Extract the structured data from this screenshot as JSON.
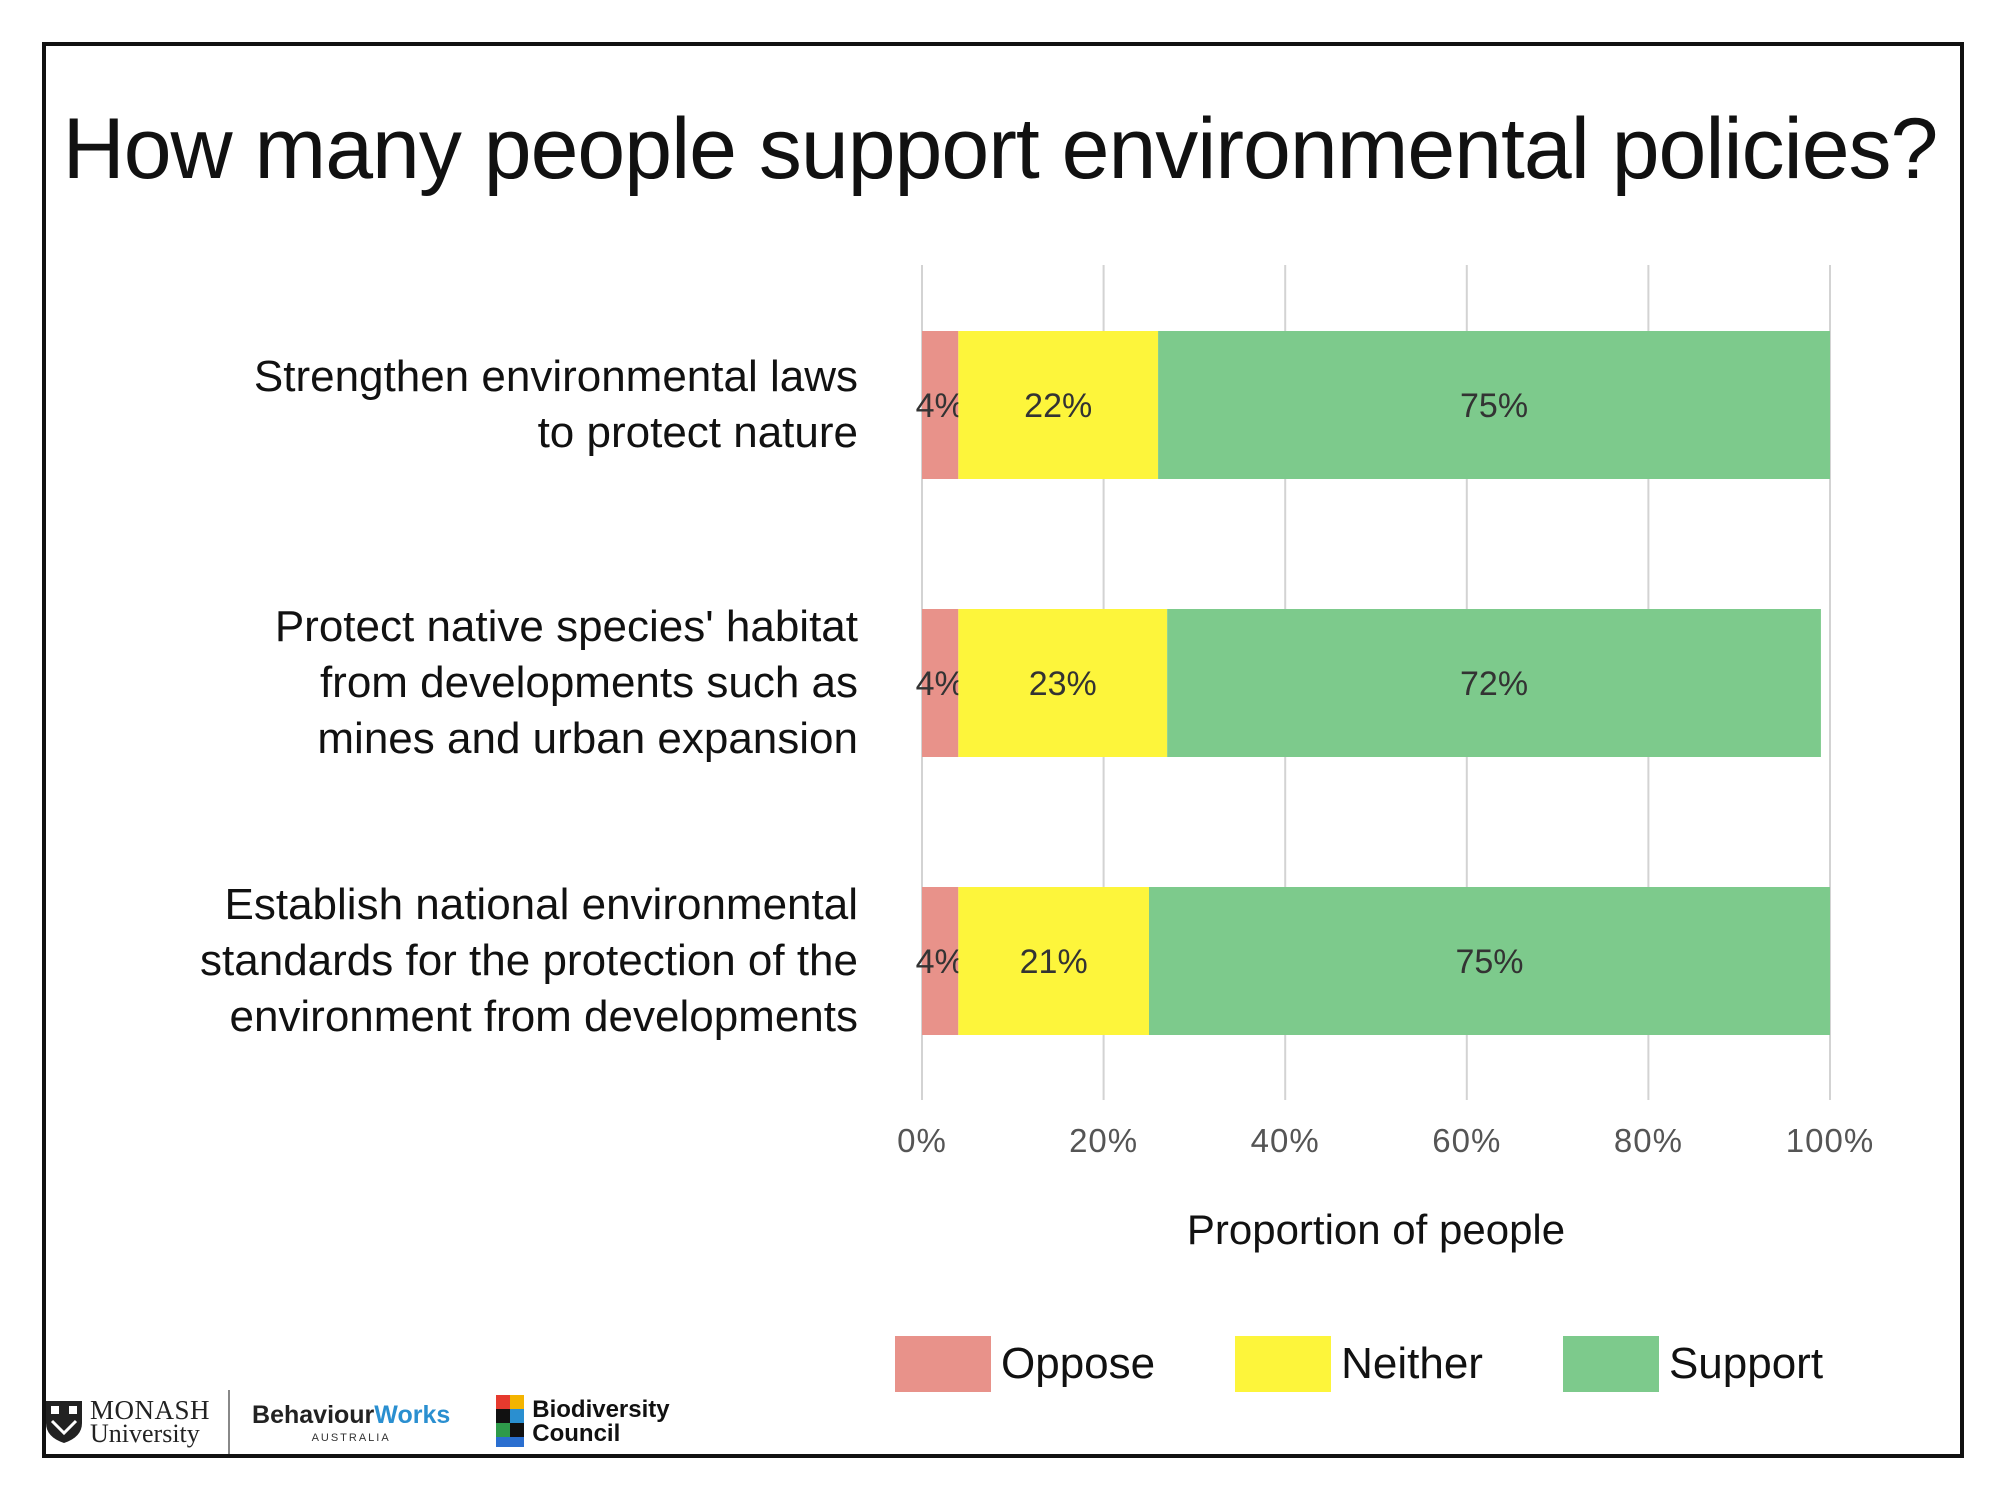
{
  "title": "How many people support environmental policies?",
  "chart_data": {
    "type": "bar",
    "orientation": "horizontal",
    "stacked": true,
    "categories": [
      [
        "Strengthen environmental laws",
        "to protect nature"
      ],
      [
        "Protect native species' habitat",
        "from developments such as",
        "mines and urban expansion"
      ],
      [
        "Establish national environmental",
        "standards for the protection of the",
        "environment from developments"
      ]
    ],
    "series": [
      {
        "name": "Oppose",
        "color": "#e8928a",
        "values": [
          4,
          4,
          4
        ],
        "labels": [
          "4%",
          "4%",
          "4%"
        ]
      },
      {
        "name": "Neither",
        "color": "#fdf53b",
        "values": [
          22,
          23,
          21
        ],
        "labels": [
          "22%",
          "23%",
          "21%"
        ]
      },
      {
        "name": "Support",
        "color": "#7dca8c",
        "values": [
          75,
          72,
          75
        ],
        "labels": [
          "75%",
          "72%",
          "75%"
        ]
      }
    ],
    "xlabel": "Proportion of people",
    "xlim": [
      0,
      100
    ],
    "xticks": [
      "0%",
      "20%",
      "40%",
      "60%",
      "80%",
      "100%"
    ],
    "grid": true,
    "legend_position": "bottom"
  },
  "logos": {
    "monash": {
      "name": "MONASH",
      "sub": "University"
    },
    "behaviourworks": {
      "part1": "Behaviour",
      "part2": "Works",
      "sub": "AUSTRALIA"
    },
    "biodiversity": {
      "line1": "Biodiversity",
      "line2": "Council"
    }
  }
}
